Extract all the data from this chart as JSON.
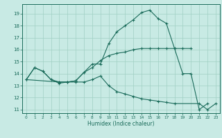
{
  "title": "",
  "xlabel": "Humidex (Indice chaleur)",
  "xlim": [
    -0.5,
    23.5
  ],
  "ylim": [
    10.7,
    19.8
  ],
  "yticks": [
    11,
    12,
    13,
    14,
    15,
    16,
    17,
    18,
    19
  ],
  "xticks": [
    0,
    1,
    2,
    3,
    4,
    5,
    6,
    7,
    8,
    9,
    10,
    11,
    12,
    13,
    14,
    15,
    16,
    17,
    18,
    19,
    20,
    21,
    22,
    23
  ],
  "bg_color": "#c8eae4",
  "line_color": "#1a6b5a",
  "grid_color": "#a0d0c4",
  "line1_x": [
    0,
    1,
    2,
    3,
    4,
    5,
    6,
    7,
    8,
    9,
    10,
    11,
    12,
    13,
    14,
    15,
    16,
    17,
    18,
    19,
    20,
    21,
    22
  ],
  "line1_y": [
    13.5,
    14.5,
    14.2,
    13.5,
    13.2,
    13.3,
    13.4,
    14.1,
    14.8,
    14.8,
    16.5,
    17.5,
    18.0,
    18.5,
    19.1,
    19.3,
    18.6,
    18.2,
    16.1,
    14.0,
    14.0,
    11.0,
    11.5
  ],
  "line2_x": [
    0,
    1,
    2,
    3,
    4,
    5,
    6,
    7,
    8,
    9,
    10,
    11,
    12,
    13,
    14,
    15,
    16,
    17,
    18,
    19,
    20
  ],
  "line2_y": [
    13.5,
    14.5,
    14.2,
    13.5,
    13.3,
    13.3,
    13.4,
    14.1,
    14.5,
    15.1,
    15.5,
    15.7,
    15.8,
    16.0,
    16.1,
    16.1,
    16.1,
    16.1,
    16.1,
    16.1,
    16.1
  ],
  "line3_x": [
    0,
    4,
    5,
    6,
    7,
    8,
    9,
    10,
    11,
    12,
    13,
    14,
    15,
    16,
    17,
    18,
    21,
    22,
    23
  ],
  "line3_y": [
    13.5,
    13.3,
    13.3,
    13.3,
    13.3,
    13.5,
    13.8,
    13.0,
    12.5,
    12.3,
    12.1,
    11.9,
    11.8,
    11.7,
    11.6,
    11.5,
    11.5,
    11.0,
    11.5
  ]
}
